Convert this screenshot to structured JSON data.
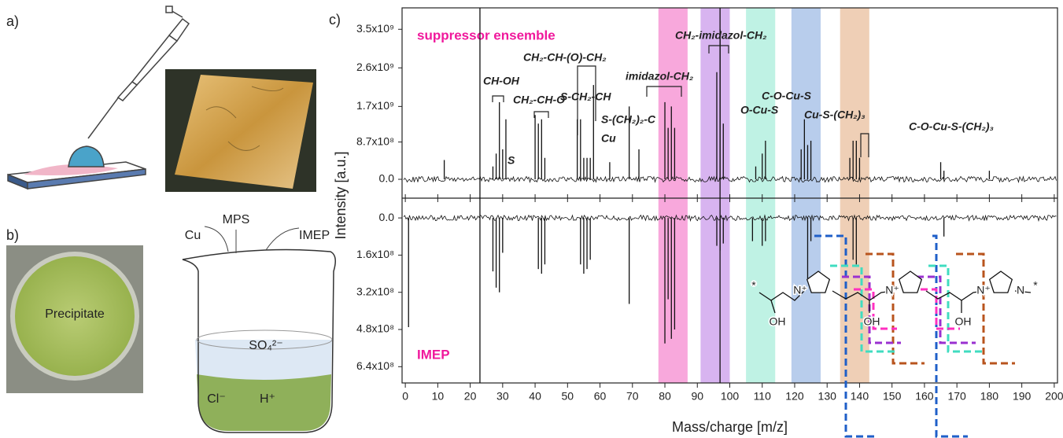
{
  "panels": {
    "a": "a)",
    "b": "b)",
    "c": "c)"
  },
  "panel_b": {
    "photo_label": "Precipitate",
    "reagents": [
      "Cu",
      "MPS",
      "IMEP"
    ],
    "ions": [
      "SO₄²⁻",
      "Cl⁻",
      "H⁺"
    ]
  },
  "structure": {
    "labels": [
      "*",
      "OH",
      "N⁺",
      "OH",
      "N⁺",
      "OH",
      "N⁺",
      "N",
      "*"
    ]
  },
  "chart_data": {
    "type": "line",
    "x_label": "Mass/charge [m/z]",
    "y_label": "Intensity [a.u.]",
    "xlim": [
      -1,
      201
    ],
    "xticks": [
      0,
      10,
      20,
      30,
      40,
      50,
      60,
      70,
      80,
      90,
      100,
      110,
      120,
      130,
      140,
      150,
      160,
      170,
      180,
      190,
      200
    ],
    "highlights": [
      {
        "from": 78,
        "to": 87,
        "color": "#f8a8dc"
      },
      {
        "from": 91,
        "to": 100,
        "color": "#d8b4f0"
      },
      {
        "from": 105,
        "to": 114,
        "color": "#bff2e4"
      },
      {
        "from": 119,
        "to": 128,
        "color": "#b8cdec"
      },
      {
        "from": 134,
        "to": 143,
        "color": "#efcfb6"
      }
    ],
    "vlines": [
      23,
      97
    ],
    "series": [
      {
        "name": "suppressor ensemble",
        "color": "#f0189c",
        "ylim": [
          -440000000,
          4000000000
        ],
        "yticks": [
          {
            "value": 0,
            "label": "0.0"
          },
          {
            "value": 870000000,
            "label": "8.7x10⁸"
          },
          {
            "value": 1700000000,
            "label": "1.7x10⁹"
          },
          {
            "value": 2600000000,
            "label": "2.6x10⁹"
          },
          {
            "value": 3500000000,
            "label": "3.5x10⁹"
          }
        ],
        "x": [
          12,
          27,
          28,
          29,
          30,
          31,
          40,
          41,
          42,
          43,
          53,
          54,
          55,
          56,
          57,
          58,
          63,
          69,
          72,
          80,
          81,
          82,
          83,
          96,
          97,
          98,
          108,
          110,
          111,
          122,
          123,
          124,
          125,
          137,
          138,
          139,
          140,
          165,
          166,
          180
        ],
        "values": [
          450000000,
          300000000,
          600000000,
          1800000000,
          700000000,
          1400000000,
          1500000000,
          1300000000,
          1400000000,
          500000000,
          1400000000,
          1400000000,
          500000000,
          500000000,
          500000000,
          2200000000,
          400000000,
          1700000000,
          700000000,
          1800000000,
          1200000000,
          1700000000,
          1200000000,
          2500000000,
          3500000000,
          1300000000,
          300000000,
          600000000,
          900000000,
          700000000,
          1400000000,
          800000000,
          900000000,
          500000000,
          900000000,
          900000000,
          500000000,
          400000000,
          200000000,
          200000000
        ]
      },
      {
        "name": "IMEP",
        "color": "#f0189c",
        "ylim": [
          710000000,
          -85000000
        ],
        "yticks": [
          {
            "value": 0,
            "label": "0.0"
          },
          {
            "value": 160000000,
            "label": "1.6x10⁸"
          },
          {
            "value": 320000000,
            "label": "3.2x10⁸"
          },
          {
            "value": 480000000,
            "label": "4.8x10⁸"
          },
          {
            "value": 640000000,
            "label": "6.4x10⁸"
          }
        ],
        "x": [
          1,
          27,
          28,
          29,
          30,
          41,
          42,
          43,
          54,
          55,
          56,
          57,
          69,
          80,
          81,
          82,
          83,
          96,
          97,
          98,
          107,
          110,
          111,
          124,
          125,
          138,
          139,
          166
        ],
        "values": [
          470000000,
          230000000,
          300000000,
          320000000,
          150000000,
          220000000,
          240000000,
          200000000,
          200000000,
          240000000,
          220000000,
          180000000,
          370000000,
          540000000,
          350000000,
          520000000,
          480000000,
          120000000,
          140000000,
          110000000,
          100000000,
          120000000,
          100000000,
          260000000,
          100000000,
          180000000,
          200000000,
          80000000
        ]
      }
    ],
    "annotations": [
      "CH-OH",
      "S",
      "CH₂-CH-O",
      "CH₂-CH-(O)-CH₂",
      "S-CH₂-CH",
      "S-(CH₂)₂-C",
      "Cu",
      "imidazol-CH₂",
      "CH₂-imidazol-CH₂",
      "O-Cu-S",
      "C-O-Cu-S",
      "Cu-S-(CH₂)₃",
      "C-O-Cu-S-(CH₂)₃"
    ]
  }
}
